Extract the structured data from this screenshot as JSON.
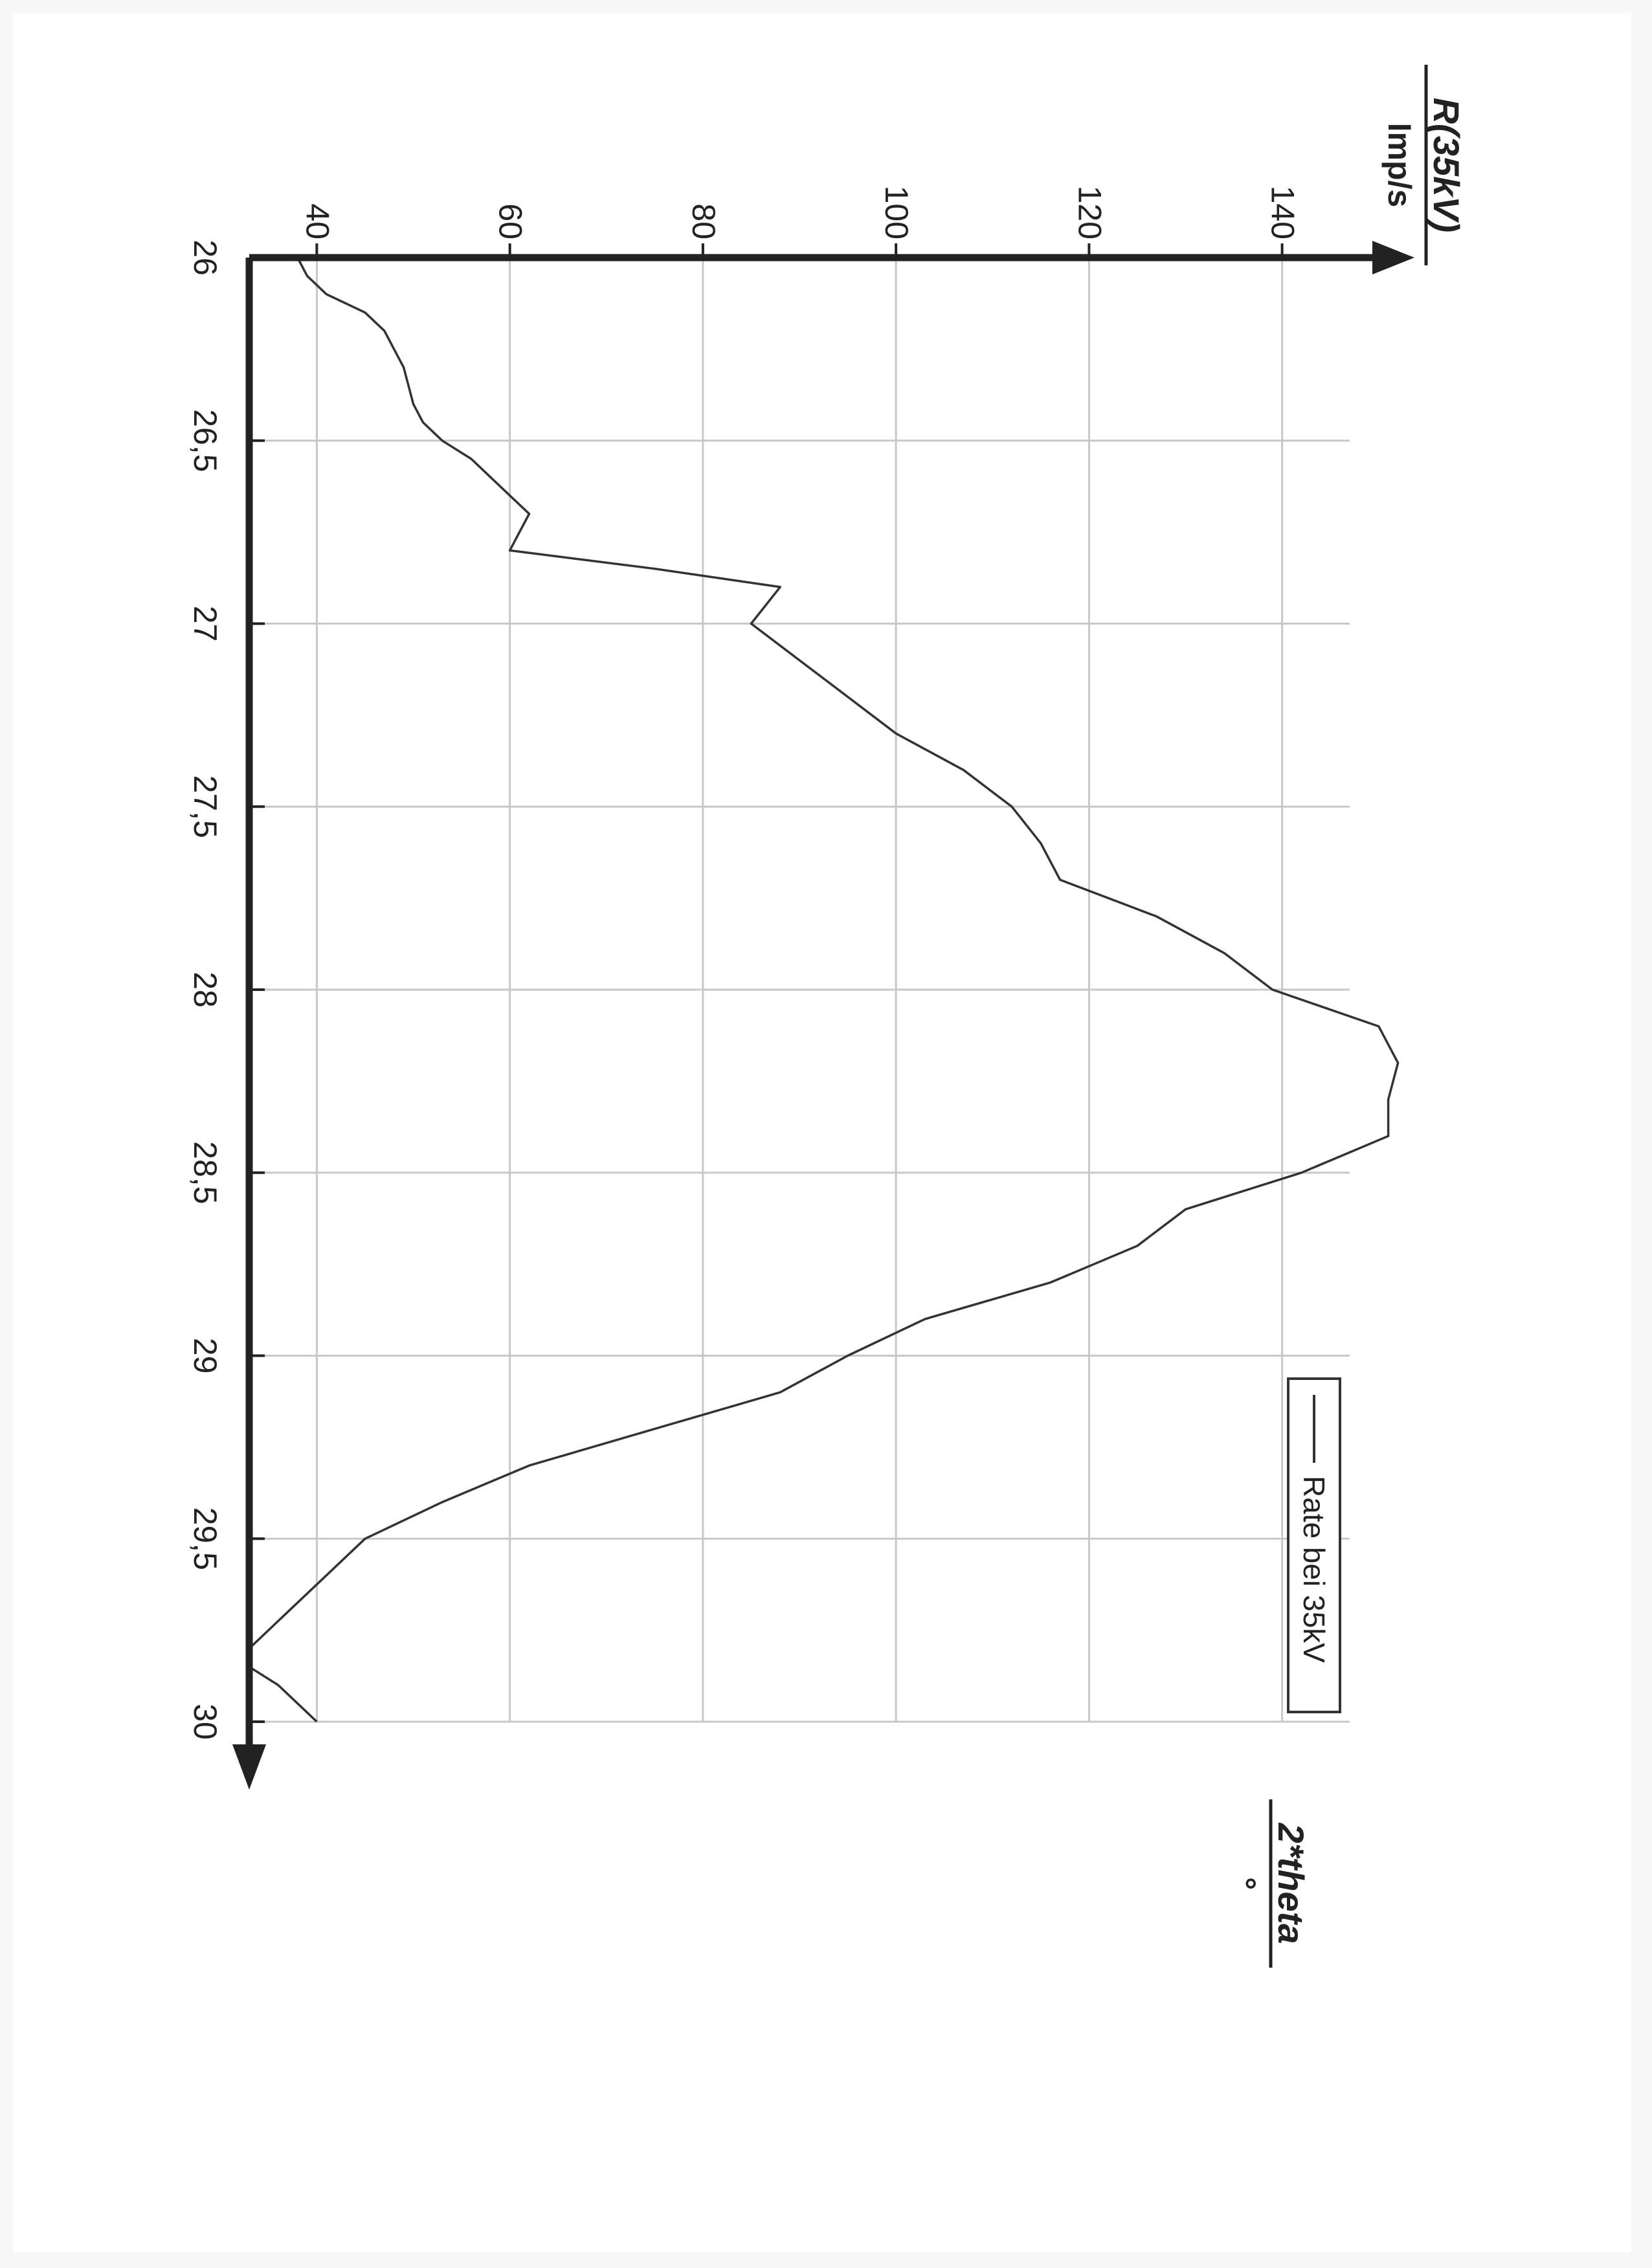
{
  "chart_data": {
    "type": "line",
    "orientation": "rotated-90-clockwise",
    "x_axis": {
      "label": "2*theta",
      "unit": "°",
      "range": [
        26,
        30
      ],
      "ticks": [
        26,
        26.5,
        27,
        27.5,
        28,
        28.5,
        29,
        29.5,
        30
      ],
      "tick_labels": [
        "26",
        "26,5",
        "27",
        "27,5",
        "28",
        "28,5",
        "29",
        "29,5",
        "30"
      ]
    },
    "y_axis": {
      "label": "R(35kV)",
      "unit": "Imp/s",
      "range": [
        33,
        147
      ],
      "ticks": [
        40,
        60,
        80,
        100,
        120,
        140
      ],
      "tick_labels": [
        "40",
        "60",
        "80",
        "100",
        "120",
        "140"
      ]
    },
    "grid": true,
    "legend": {
      "position": "bottom-right",
      "entries": [
        "Rate bei 35kV"
      ]
    },
    "series": [
      {
        "name": "Rate bei 35kV",
        "color": "#333333",
        "points": [
          [
            26.0,
            38
          ],
          [
            26.05,
            39
          ],
          [
            26.1,
            41
          ],
          [
            26.15,
            45
          ],
          [
            26.2,
            47
          ],
          [
            26.25,
            48
          ],
          [
            26.3,
            49
          ],
          [
            26.4,
            50
          ],
          [
            26.45,
            51
          ],
          [
            26.5,
            53
          ],
          [
            26.55,
            56
          ],
          [
            26.6,
            58
          ],
          [
            26.65,
            60
          ],
          [
            26.7,
            62
          ],
          [
            26.75,
            61
          ],
          [
            26.8,
            60
          ],
          [
            26.85,
            75
          ],
          [
            26.9,
            88
          ],
          [
            27.0,
            85
          ],
          [
            27.1,
            90
          ],
          [
            27.2,
            95
          ],
          [
            27.3,
            100
          ],
          [
            27.4,
            107
          ],
          [
            27.5,
            112
          ],
          [
            27.6,
            115
          ],
          [
            27.7,
            117
          ],
          [
            27.8,
            127
          ],
          [
            27.9,
            134
          ],
          [
            28.0,
            139
          ],
          [
            28.1,
            150
          ],
          [
            28.2,
            152
          ],
          [
            28.3,
            151
          ],
          [
            28.4,
            151
          ],
          [
            28.5,
            142
          ],
          [
            28.6,
            130
          ],
          [
            28.7,
            125
          ],
          [
            28.8,
            116
          ],
          [
            28.9,
            103
          ],
          [
            29.0,
            95
          ],
          [
            29.1,
            88
          ],
          [
            29.2,
            75
          ],
          [
            29.3,
            62
          ],
          [
            29.4,
            53
          ],
          [
            29.5,
            45
          ],
          [
            29.6,
            41
          ],
          [
            29.7,
            37
          ],
          [
            29.8,
            33
          ],
          [
            29.85,
            33
          ],
          [
            29.9,
            36
          ],
          [
            29.95,
            38
          ],
          [
            30.0,
            40
          ]
        ]
      }
    ]
  }
}
